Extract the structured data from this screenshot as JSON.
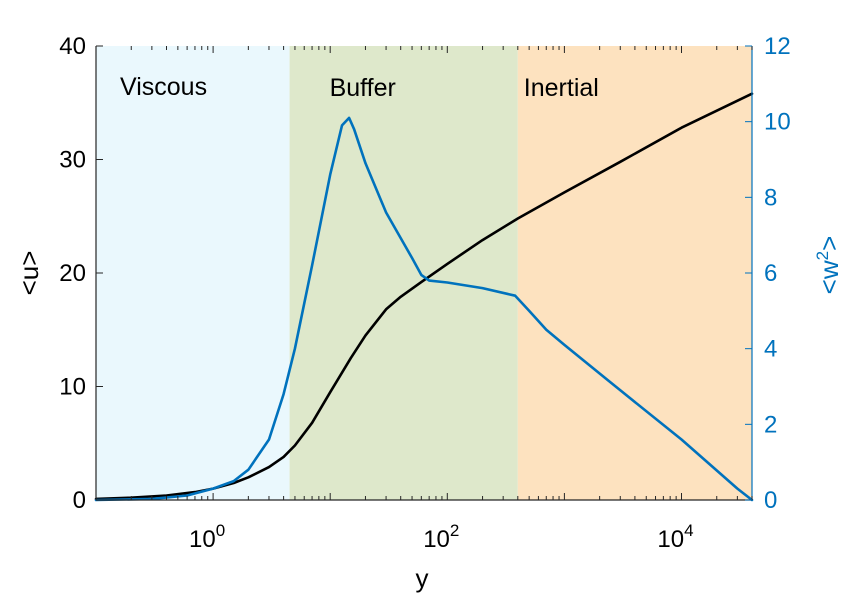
{
  "chart_data": {
    "type": "line",
    "x_scale": "log",
    "xlabel": "y",
    "xlim": [
      0.1,
      40000
    ],
    "x_ticks": [
      {
        "value": 1,
        "base": "10",
        "exp": "0"
      },
      {
        "value": 100,
        "base": "10",
        "exp": "2"
      },
      {
        "value": 10000,
        "base": "10",
        "exp": "4"
      }
    ],
    "y_left": {
      "label": "<u>",
      "lim": [
        0,
        40
      ],
      "ticks": [
        "0",
        "10",
        "20",
        "30",
        "40"
      ],
      "color": "#000000"
    },
    "y_right": {
      "label_base": "<w",
      "label_sup": "2",
      "label_end": ">",
      "lim": [
        0,
        12
      ],
      "ticks": [
        "0",
        "2",
        "4",
        "6",
        "8",
        "10",
        "12"
      ],
      "color": "#0072BD"
    },
    "regions": [
      {
        "label": "Viscous",
        "x_start": 0.1,
        "x_end": 4.5,
        "color": "#EAF8FD"
      },
      {
        "label": "Buffer",
        "x_start": 4.5,
        "x_end": 400,
        "color": "#DEE8CB"
      },
      {
        "label": "Inertial",
        "x_start": 400,
        "x_end": 40000,
        "color": "#FDE2BF"
      }
    ],
    "series": [
      {
        "axis": "left",
        "color": "#000000",
        "points": [
          [
            0.1,
            0.1
          ],
          [
            0.2,
            0.2
          ],
          [
            0.4,
            0.4
          ],
          [
            0.7,
            0.7
          ],
          [
            1,
            1.0
          ],
          [
            1.5,
            1.5
          ],
          [
            2,
            2.0
          ],
          [
            3,
            2.9
          ],
          [
            4,
            3.8
          ],
          [
            5,
            4.8
          ],
          [
            7,
            6.8
          ],
          [
            10,
            9.5
          ],
          [
            15,
            12.5
          ],
          [
            20,
            14.5
          ],
          [
            30,
            16.8
          ],
          [
            40,
            17.9
          ],
          [
            60,
            19.2
          ],
          [
            100,
            20.8
          ],
          [
            200,
            22.9
          ],
          [
            400,
            24.8
          ],
          [
            1000,
            27.1
          ],
          [
            3000,
            29.8
          ],
          [
            10000,
            32.8
          ],
          [
            40000,
            35.8
          ]
        ]
      },
      {
        "axis": "right",
        "color": "#0072BD",
        "points": [
          [
            0.1,
            0.0
          ],
          [
            0.3,
            0.03
          ],
          [
            0.6,
            0.12
          ],
          [
            1,
            0.3
          ],
          [
            1.5,
            0.5
          ],
          [
            2,
            0.8
          ],
          [
            3,
            1.6
          ],
          [
            4,
            2.8
          ],
          [
            5,
            4.0
          ],
          [
            7,
            6.2
          ],
          [
            10,
            8.6
          ],
          [
            12.6,
            9.9
          ],
          [
            14.5,
            10.1
          ],
          [
            16,
            9.8
          ],
          [
            20,
            8.9
          ],
          [
            30,
            7.6
          ],
          [
            50,
            6.4
          ],
          [
            60,
            5.95
          ],
          [
            70,
            5.8
          ],
          [
            100,
            5.75
          ],
          [
            200,
            5.6
          ],
          [
            380,
            5.4
          ],
          [
            500,
            5.0
          ],
          [
            700,
            4.5
          ],
          [
            1000,
            4.1
          ],
          [
            3000,
            2.9
          ],
          [
            10000,
            1.6
          ],
          [
            30000,
            0.3
          ],
          [
            40000,
            0.0
          ]
        ]
      }
    ]
  }
}
